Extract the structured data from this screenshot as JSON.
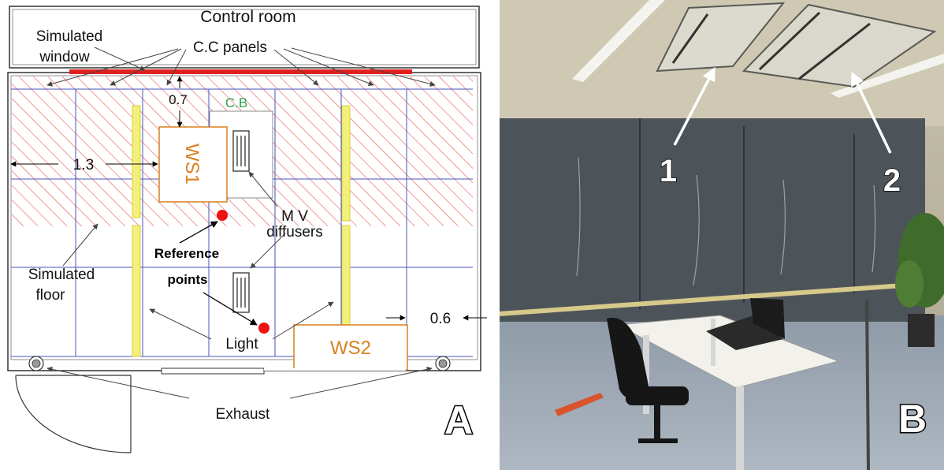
{
  "panel_a": {
    "letter": "A",
    "labels": {
      "control_room": "Control room",
      "simulated_window": [
        "Simulated",
        "window"
      ],
      "cc_panels": "C.C panels",
      "dim_07": "0.7",
      "cb": "C.B",
      "dim_13": "1.3",
      "ws1": "WS1",
      "mv_diffusers": [
        "M V",
        "diffusers"
      ],
      "reference_points": [
        "Reference",
        "points"
      ],
      "simulated_floor": [
        "Simulated",
        "floor"
      ],
      "light": "Light",
      "dim_06": "0.6",
      "ws2": "WS2",
      "exhaust": "Exhaust"
    },
    "colors": {
      "hatch": "#e4574f",
      "window": "#e02020",
      "grid": "#4455bb",
      "light": "#f2f07a",
      "ws": "#d97f1e",
      "cb": "#2ea24a",
      "ref_point": "#ee1111"
    }
  },
  "panel_b": {
    "letter": "B",
    "label_1": "1",
    "label_2": "2"
  }
}
